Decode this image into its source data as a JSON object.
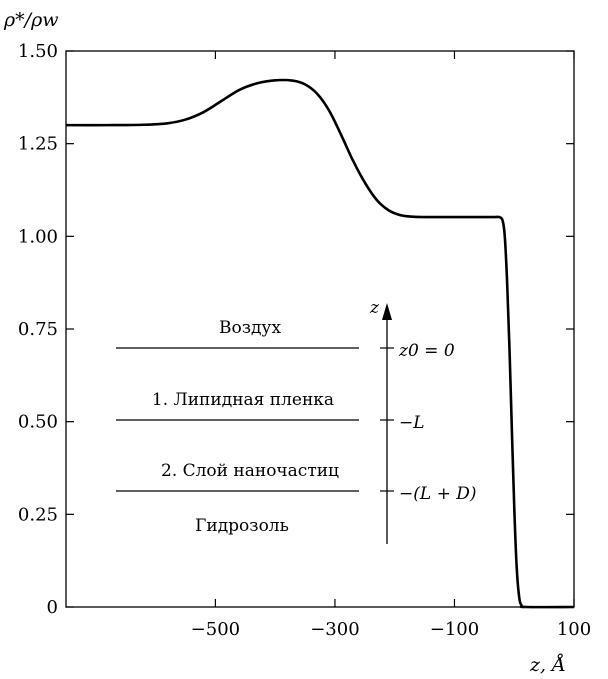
{
  "chart_data": {
    "type": "line",
    "title": "",
    "xlabel": "z, Å",
    "ylabel": "ρ*/ρw",
    "xlim": [
      -750,
      100
    ],
    "ylim": [
      0,
      1.5
    ],
    "x_ticks": [
      -500,
      -300,
      -100,
      100
    ],
    "x_tick_labels": [
      "−500",
      "−300",
      "−100",
      "100"
    ],
    "y_ticks": [
      0,
      0.25,
      0.5,
      0.75,
      1.0,
      1.25,
      1.5
    ],
    "y_tick_labels": [
      "0",
      "0.25",
      "0.50",
      "0.75",
      "1.00",
      "1.25",
      "1.50"
    ],
    "grid": false,
    "series": [
      {
        "x": [
          -750,
          -680,
          -620,
          -580,
          -550,
          -520,
          -490,
          -460,
          -430,
          -400,
          -370,
          -350,
          -330,
          -310,
          -290,
          -270,
          -250,
          -230,
          -210,
          -190,
          -170,
          -150,
          -120,
          -90,
          -60,
          -35,
          -25,
          -20,
          -17,
          -15,
          -12,
          -8,
          -4,
          0,
          4,
          8,
          12,
          20,
          100
        ],
        "y": [
          1.3,
          1.3,
          1.301,
          1.305,
          1.315,
          1.335,
          1.365,
          1.395,
          1.413,
          1.421,
          1.42,
          1.41,
          1.385,
          1.34,
          1.275,
          1.205,
          1.145,
          1.098,
          1.07,
          1.057,
          1.053,
          1.052,
          1.052,
          1.052,
          1.052,
          1.052,
          1.052,
          1.045,
          1.02,
          0.98,
          0.88,
          0.7,
          0.48,
          0.27,
          0.11,
          0.03,
          0.005,
          0.0,
          0.0
        ]
      }
    ],
    "annotations": {
      "layer_air": "Воздух",
      "layer_lipid": "1. Липидная пленка",
      "layer_nano": "2. Слой наночастиц",
      "layer_hydrosol": "Гидрозоль",
      "axis_z": "z",
      "mark_z0": "z0 = 0",
      "mark_L": "−L",
      "mark_LD": "−(L + D)"
    }
  }
}
